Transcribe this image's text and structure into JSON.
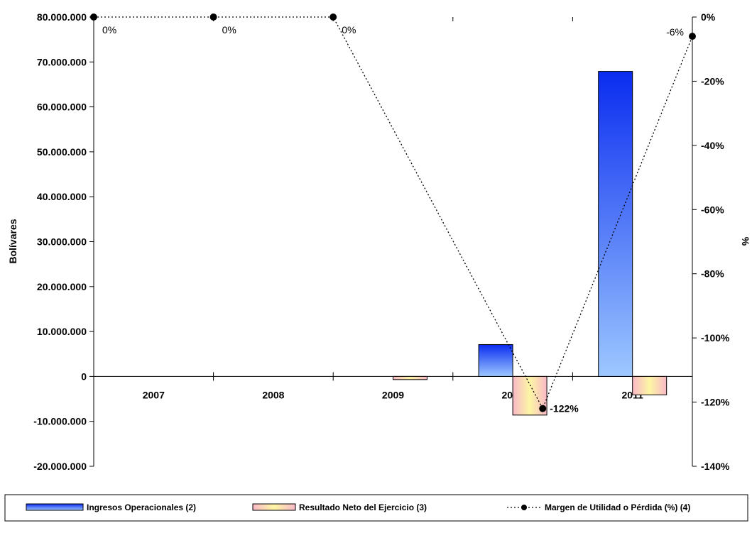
{
  "chart_data": {
    "type": "bar",
    "categories": [
      "2007",
      "2008",
      "2009",
      "2010",
      "2011"
    ],
    "series": [
      {
        "name": "Ingresos Operacionales (2)",
        "type": "bar",
        "axis": "left",
        "values": [
          0,
          0,
          0,
          7100000,
          67900000
        ]
      },
      {
        "name": "Resultado Neto del Ejercicio (3)",
        "type": "bar",
        "axis": "left",
        "values": [
          0,
          0,
          -700000,
          -8600000,
          -4100000
        ]
      },
      {
        "name": "Margen de Utilidad o Pérdida (%) (4)",
        "type": "line",
        "axis": "right",
        "values": [
          0,
          0,
          0,
          -122,
          -6
        ]
      }
    ],
    "point_labels": [
      "0%",
      "0%",
      "0%",
      "-122%",
      "-6%"
    ],
    "ylabel": "Bolívares",
    "y2label": "%",
    "ylim": [
      -20000000,
      80000000
    ],
    "y2lim": [
      -140,
      0
    ],
    "yticks": [
      "80.000.000",
      "70.000.000",
      "60.000.000",
      "50.000.000",
      "40.000.000",
      "30.000.000",
      "20.000.000",
      "10.000.000",
      "0",
      "-10.000.000",
      "-20.000.000"
    ],
    "y2ticks": [
      "0%",
      "-20%",
      "-40%",
      "-60%",
      "-80%",
      "-100%",
      "-120%",
      "-140%"
    ],
    "legend_position": "bottom",
    "grid": false,
    "colors": {
      "ingresos_top": "#0a2cf0",
      "ingresos_bottom": "#9dc8ff",
      "resultado_outer": "#f9b8c8",
      "resultado_center": "#fdf6a4",
      "line": "#000000"
    }
  }
}
